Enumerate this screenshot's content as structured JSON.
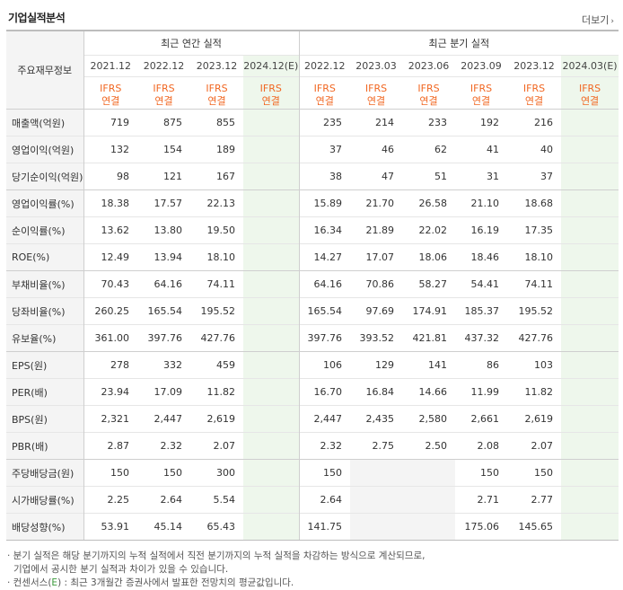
{
  "header": {
    "title": "기업실적분석",
    "more_label": "더보기",
    "more_arrow": "›"
  },
  "table": {
    "row_label_header": "주요재무정보",
    "annual_group": "최근 연간 실적",
    "quarter_group": "최근 분기 실적",
    "annual_periods": [
      "2021.12",
      "2022.12",
      "2023.12",
      "2024.12(E)"
    ],
    "quarter_periods": [
      "2022.12",
      "2023.03",
      "2023.06",
      "2023.09",
      "2023.12",
      "2024.03(E)"
    ],
    "ifrs_line1": "IFRS",
    "ifrs_line2": "연결",
    "rows": [
      {
        "label": "매출액(억원)",
        "annual": [
          "719",
          "875",
          "855",
          ""
        ],
        "quarter": [
          "235",
          "214",
          "233",
          "192",
          "216",
          ""
        ]
      },
      {
        "label": "영업이익(억원)",
        "annual": [
          "132",
          "154",
          "189",
          ""
        ],
        "quarter": [
          "37",
          "46",
          "62",
          "41",
          "40",
          ""
        ]
      },
      {
        "label": "당기순이익(억원)",
        "annual": [
          "98",
          "121",
          "167",
          ""
        ],
        "quarter": [
          "38",
          "47",
          "51",
          "31",
          "37",
          ""
        ]
      },
      {
        "label": "영업이익률(%)",
        "annual": [
          "18.38",
          "17.57",
          "22.13",
          ""
        ],
        "quarter": [
          "15.89",
          "21.70",
          "26.58",
          "21.10",
          "18.68",
          ""
        ]
      },
      {
        "label": "순이익률(%)",
        "annual": [
          "13.62",
          "13.80",
          "19.50",
          ""
        ],
        "quarter": [
          "16.34",
          "21.89",
          "22.02",
          "16.19",
          "17.35",
          ""
        ]
      },
      {
        "label": "ROE(%)",
        "annual": [
          "12.49",
          "13.94",
          "18.10",
          ""
        ],
        "quarter": [
          "14.27",
          "17.07",
          "18.06",
          "18.46",
          "18.10",
          ""
        ]
      },
      {
        "label": "부채비율(%)",
        "annual": [
          "70.43",
          "64.16",
          "74.11",
          ""
        ],
        "quarter": [
          "64.16",
          "70.86",
          "58.27",
          "54.41",
          "74.11",
          ""
        ]
      },
      {
        "label": "당좌비율(%)",
        "annual": [
          "260.25",
          "165.54",
          "195.52",
          ""
        ],
        "quarter": [
          "165.54",
          "97.69",
          "174.91",
          "185.37",
          "195.52",
          ""
        ]
      },
      {
        "label": "유보율(%)",
        "annual": [
          "361.00",
          "397.76",
          "427.76",
          ""
        ],
        "quarter": [
          "397.76",
          "393.52",
          "421.81",
          "437.32",
          "427.76",
          ""
        ]
      },
      {
        "label": "EPS(원)",
        "annual": [
          "278",
          "332",
          "459",
          ""
        ],
        "quarter": [
          "106",
          "129",
          "141",
          "86",
          "103",
          ""
        ]
      },
      {
        "label": "PER(배)",
        "annual": [
          "23.94",
          "17.09",
          "11.82",
          ""
        ],
        "quarter": [
          "16.70",
          "16.84",
          "14.66",
          "11.99",
          "11.82",
          ""
        ]
      },
      {
        "label": "BPS(원)",
        "annual": [
          "2,321",
          "2,447",
          "2,619",
          ""
        ],
        "quarter": [
          "2,447",
          "2,435",
          "2,580",
          "2,661",
          "2,619",
          ""
        ]
      },
      {
        "label": "PBR(배)",
        "annual": [
          "2.87",
          "2.32",
          "2.07",
          ""
        ],
        "quarter": [
          "2.32",
          "2.75",
          "2.50",
          "2.08",
          "2.07",
          ""
        ]
      },
      {
        "label": "주당배당금(원)",
        "annual": [
          "150",
          "150",
          "300",
          ""
        ],
        "quarter": [
          "150",
          "",
          "",
          "150",
          "150",
          ""
        ]
      },
      {
        "label": "시가배당률(%)",
        "annual": [
          "2.25",
          "2.64",
          "5.54",
          ""
        ],
        "quarter": [
          "2.64",
          "",
          "",
          "2.71",
          "2.77",
          ""
        ]
      },
      {
        "label": "배당성향(%)",
        "annual": [
          "53.91",
          "45.14",
          "65.43",
          ""
        ],
        "quarter": [
          "141.75",
          "",
          "",
          "175.06",
          "145.65",
          ""
        ]
      }
    ],
    "blank_cells": [
      [
        13,
        1
      ],
      [
        13,
        2
      ],
      [
        14,
        1
      ],
      [
        14,
        2
      ],
      [
        15,
        1
      ],
      [
        15,
        2
      ]
    ],
    "group_starts": [
      3,
      6,
      9,
      13
    ]
  },
  "notes": {
    "line1": "· 분기 실적은 해당 분기까지의 누적 실적에서 직전 분기까지의 누적 실적을 차감하는 방식으로 계산되므로,",
    "line2": "  기업에서 공시한 분기 실적과 차이가 있을 수 있습니다.",
    "line3_pre": "· 컨센서스(",
    "line3_e": "E",
    "line3_post": ") : 최근 3개월간 증권사에서 발표한 전망치의 평균값입니다."
  },
  "colors": {
    "ifrs": "#f16722",
    "estimate_bg": "#eef7ec",
    "label_bg": "#f4f4f4"
  }
}
